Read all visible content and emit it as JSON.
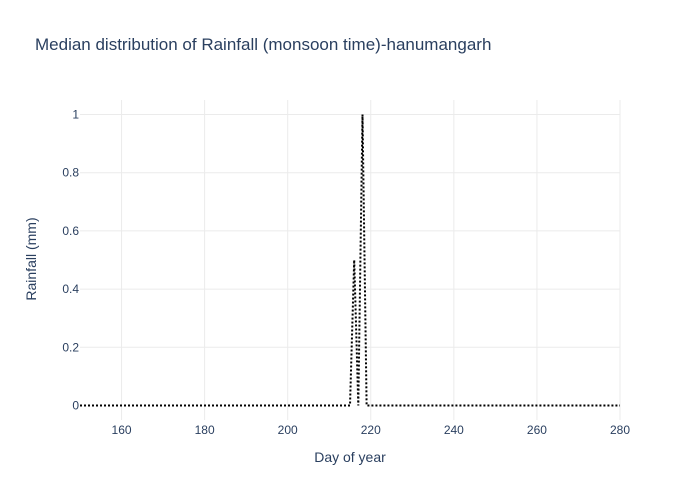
{
  "chart_data": {
    "type": "line",
    "title": "Median distribution of Rainfall (monsoon time)-hanumangarh",
    "xlabel": "Day of year",
    "ylabel": "Rainfall (mm)",
    "xlim": [
      150,
      280
    ],
    "ylim": [
      -0.05,
      1.05
    ],
    "x_ticks": [
      160,
      180,
      200,
      220,
      240,
      260,
      280
    ],
    "x_tick_labels": [
      "160",
      "180",
      "200",
      "220",
      "240",
      "260",
      "280"
    ],
    "y_ticks": [
      0,
      0.2,
      0.4,
      0.6,
      0.8,
      1
    ],
    "y_tick_labels": [
      "0",
      "0.2",
      "0.4",
      "0.6",
      "0.8",
      "1"
    ],
    "grid": true,
    "legend": "none",
    "series": [
      {
        "line_style": "dotted",
        "color": "#000000",
        "x": [
          150,
          215,
          216,
          217,
          218,
          219,
          280
        ],
        "y": [
          0,
          0,
          0.5,
          0,
          1,
          0,
          0
        ]
      }
    ]
  }
}
